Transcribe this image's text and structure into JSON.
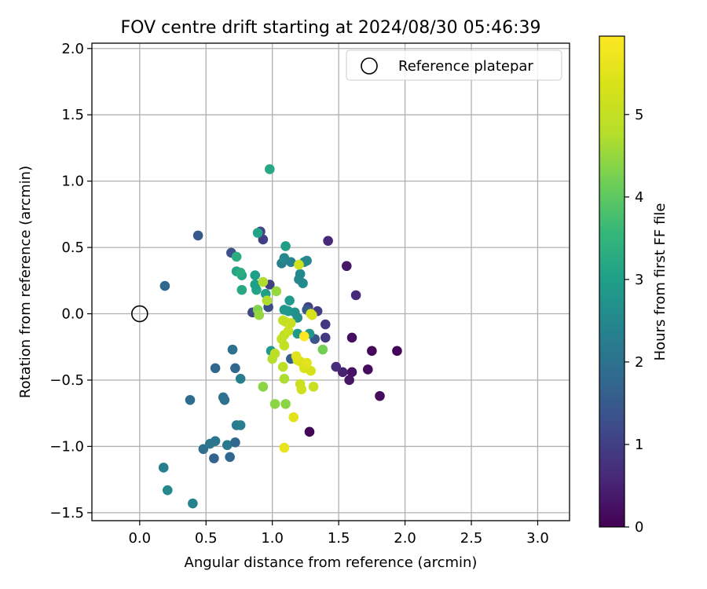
{
  "chart_data": {
    "type": "scatter",
    "title": "FOV centre drift starting at 2024/08/30 05:46:39",
    "xlabel": "Angular distance from reference (arcmin)",
    "ylabel": "Rotation from reference (arcmin)",
    "xlim": [
      -0.36,
      3.24
    ],
    "ylim": [
      -1.56,
      2.04
    ],
    "xticks": [
      "0.0",
      "0.5",
      "1.0",
      "1.5",
      "2.0",
      "2.5",
      "3.0"
    ],
    "xtick_values": [
      0,
      0.5,
      1,
      1.5,
      2,
      2.5,
      3
    ],
    "yticks": [
      "2.0",
      "1.5",
      "1.0",
      "0.5",
      "0.0",
      "−0.5",
      "−1.0",
      "−1.5"
    ],
    "ytick_values": [
      2,
      1.5,
      1,
      0.5,
      0,
      -0.5,
      -1,
      -1.5
    ],
    "grid": true,
    "legend": {
      "position": "top-right",
      "entries": [
        {
          "label": "Reference platepar",
          "marker": "open-circle"
        }
      ]
    },
    "reference_point": {
      "x": 0,
      "y": 0
    },
    "colorbar": {
      "label": "Hours from first FF file",
      "colormap": "viridis",
      "range": [
        0,
        5.95
      ],
      "ticks": [
        "0",
        "1",
        "2",
        "3",
        "4",
        "5"
      ],
      "tick_values": [
        0,
        1,
        2,
        3,
        4,
        5
      ]
    },
    "points": [
      {
        "x": 1.28,
        "y": -0.89,
        "h": 0.05
      },
      {
        "x": 1.94,
        "y": -0.28,
        "h": 0.05
      },
      {
        "x": 1.75,
        "y": -0.28,
        "h": 0.1
      },
      {
        "x": 1.72,
        "y": -0.42,
        "h": 0.15
      },
      {
        "x": 1.81,
        "y": -0.62,
        "h": 0.15
      },
      {
        "x": 1.6,
        "y": -0.18,
        "h": 0.2
      },
      {
        "x": 1.6,
        "y": -0.44,
        "h": 0.25
      },
      {
        "x": 1.58,
        "y": -0.5,
        "h": 0.3
      },
      {
        "x": 1.56,
        "y": 0.36,
        "h": 0.35
      },
      {
        "x": 1.53,
        "y": -0.44,
        "h": 0.5
      },
      {
        "x": 1.42,
        "y": 0.55,
        "h": 0.6
      },
      {
        "x": 1.63,
        "y": 0.14,
        "h": 0.65
      },
      {
        "x": 1.48,
        "y": -0.4,
        "h": 0.7
      },
      {
        "x": 1.4,
        "y": -0.18,
        "h": 0.9
      },
      {
        "x": 1.4,
        "y": -0.08,
        "h": 0.9
      },
      {
        "x": 1.34,
        "y": 0.02,
        "h": 0.95
      },
      {
        "x": 1.27,
        "y": 0.05,
        "h": 1.0
      },
      {
        "x": 0.93,
        "y": 0.56,
        "h": 1.0
      },
      {
        "x": 0.91,
        "y": 0.62,
        "h": 1.1
      },
      {
        "x": 0.98,
        "y": 0.22,
        "h": 1.0
      },
      {
        "x": 0.85,
        "y": 0.01,
        "h": 1.1
      },
      {
        "x": 0.97,
        "y": 0.05,
        "h": 1.2
      },
      {
        "x": 1.32,
        "y": -0.19,
        "h": 1.4
      },
      {
        "x": 1.26,
        "y": 0.03,
        "h": 1.5
      },
      {
        "x": 1.14,
        "y": -0.34,
        "h": 1.6
      },
      {
        "x": 0.44,
        "y": 0.59,
        "h": 1.5
      },
      {
        "x": 0.69,
        "y": 0.46,
        "h": 1.3
      },
      {
        "x": 0.19,
        "y": 0.21,
        "h": 1.8
      },
      {
        "x": 0.57,
        "y": -0.41,
        "h": 1.8
      },
      {
        "x": 0.72,
        "y": -0.41,
        "h": 1.8
      },
      {
        "x": 0.7,
        "y": -0.27,
        "h": 2.0
      },
      {
        "x": 0.38,
        "y": -0.65,
        "h": 1.9
      },
      {
        "x": 0.63,
        "y": -0.63,
        "h": 2.0
      },
      {
        "x": 0.64,
        "y": -0.65,
        "h": 2.0
      },
      {
        "x": 0.48,
        "y": -1.02,
        "h": 2.0
      },
      {
        "x": 0.53,
        "y": -0.98,
        "h": 2.1
      },
      {
        "x": 0.57,
        "y": -0.96,
        "h": 2.1
      },
      {
        "x": 0.66,
        "y": -0.99,
        "h": 2.2
      },
      {
        "x": 0.72,
        "y": -0.97,
        "h": 1.8
      },
      {
        "x": 0.56,
        "y": -1.09,
        "h": 1.7
      },
      {
        "x": 0.68,
        "y": -1.08,
        "h": 1.8
      },
      {
        "x": 0.73,
        "y": -0.84,
        "h": 2.2
      },
      {
        "x": 0.76,
        "y": -0.84,
        "h": 2.3
      },
      {
        "x": 0.76,
        "y": -0.49,
        "h": 2.3
      },
      {
        "x": 0.18,
        "y": -1.16,
        "h": 2.3
      },
      {
        "x": 0.21,
        "y": -1.33,
        "h": 2.5
      },
      {
        "x": 0.4,
        "y": -1.43,
        "h": 2.4
      },
      {
        "x": 1.07,
        "y": 0.38,
        "h": 2.3
      },
      {
        "x": 1.09,
        "y": 0.42,
        "h": 2.5
      },
      {
        "x": 1.14,
        "y": 0.39,
        "h": 2.4
      },
      {
        "x": 1.21,
        "y": 0.3,
        "h": 2.5
      },
      {
        "x": 1.23,
        "y": 0.23,
        "h": 2.6
      },
      {
        "x": 1.24,
        "y": 0.39,
        "h": 2.6
      },
      {
        "x": 1.26,
        "y": 0.4,
        "h": 2.5
      },
      {
        "x": 1.2,
        "y": 0.26,
        "h": 2.5
      },
      {
        "x": 1.17,
        "y": 0.01,
        "h": 2.7
      },
      {
        "x": 1.12,
        "y": 0.02,
        "h": 2.8
      },
      {
        "x": 1.09,
        "y": 0.03,
        "h": 2.8
      },
      {
        "x": 1.13,
        "y": 0.1,
        "h": 2.9
      },
      {
        "x": 1.19,
        "y": -0.03,
        "h": 2.7
      },
      {
        "x": 1.28,
        "y": -0.15,
        "h": 2.8
      },
      {
        "x": 1.19,
        "y": -0.15,
        "h": 2.9
      },
      {
        "x": 0.99,
        "y": -0.28,
        "h": 2.9
      },
      {
        "x": 1.1,
        "y": 0.51,
        "h": 3.0
      },
      {
        "x": 0.89,
        "y": 0.61,
        "h": 3.1
      },
      {
        "x": 0.87,
        "y": 0.29,
        "h": 3.0
      },
      {
        "x": 0.88,
        "y": 0.18,
        "h": 3.1
      },
      {
        "x": 0.87,
        "y": 0.22,
        "h": 3.0
      },
      {
        "x": 0.95,
        "y": 0.15,
        "h": 3.0
      },
      {
        "x": 0.73,
        "y": 0.32,
        "h": 3.1
      },
      {
        "x": 0.77,
        "y": 0.29,
        "h": 3.1
      },
      {
        "x": 0.77,
        "y": 0.18,
        "h": 3.2
      },
      {
        "x": 0.98,
        "y": 1.09,
        "h": 3.2
      },
      {
        "x": 0.76,
        "y": 0.31,
        "h": 3.3
      },
      {
        "x": 0.73,
        "y": 0.43,
        "h": 3.3
      },
      {
        "x": 1.38,
        "y": -0.27,
        "h": 4.2
      },
      {
        "x": 0.96,
        "y": 0.1,
        "h": 4.2
      },
      {
        "x": 0.89,
        "y": 0.03,
        "h": 4.3
      },
      {
        "x": 0.93,
        "y": -0.55,
        "h": 4.4
      },
      {
        "x": 1.02,
        "y": -0.68,
        "h": 4.4
      },
      {
        "x": 1.1,
        "y": -0.68,
        "h": 4.4
      },
      {
        "x": 1.03,
        "y": 0.17,
        "h": 4.5
      },
      {
        "x": 0.9,
        "y": -0.01,
        "h": 4.5
      },
      {
        "x": 0.93,
        "y": 0.24,
        "h": 4.7
      },
      {
        "x": 0.96,
        "y": 0.1,
        "h": 4.7
      },
      {
        "x": 1.09,
        "y": -0.49,
        "h": 4.7
      },
      {
        "x": 1.0,
        "y": -0.34,
        "h": 4.8
      },
      {
        "x": 1.02,
        "y": -0.3,
        "h": 4.9
      },
      {
        "x": 1.09,
        "y": -0.16,
        "h": 4.9
      },
      {
        "x": 1.08,
        "y": -0.4,
        "h": 4.9
      },
      {
        "x": 1.09,
        "y": -0.24,
        "h": 5.0
      },
      {
        "x": 1.07,
        "y": -0.19,
        "h": 5.0
      },
      {
        "x": 1.08,
        "y": -0.05,
        "h": 5.0
      },
      {
        "x": 1.1,
        "y": -0.06,
        "h": 5.0
      },
      {
        "x": 1.12,
        "y": -0.13,
        "h": 5.1
      },
      {
        "x": 1.14,
        "y": -0.07,
        "h": 5.1
      },
      {
        "x": 1.31,
        "y": -0.55,
        "h": 5.1
      },
      {
        "x": 1.21,
        "y": -0.53,
        "h": 5.1
      },
      {
        "x": 1.22,
        "y": -0.57,
        "h": 5.2
      },
      {
        "x": 1.2,
        "y": 0.37,
        "h": 5.2
      },
      {
        "x": 1.29,
        "y": 0.0,
        "h": 5.3
      },
      {
        "x": 1.3,
        "y": -0.01,
        "h": 5.3
      },
      {
        "x": 1.29,
        "y": -0.43,
        "h": 5.3
      },
      {
        "x": 1.19,
        "y": -0.35,
        "h": 5.3
      },
      {
        "x": 1.24,
        "y": -0.41,
        "h": 5.4
      },
      {
        "x": 1.21,
        "y": -0.36,
        "h": 5.4
      },
      {
        "x": 1.26,
        "y": -0.37,
        "h": 5.5
      },
      {
        "x": 1.18,
        "y": -0.32,
        "h": 5.5
      },
      {
        "x": 1.16,
        "y": -0.78,
        "h": 5.5
      },
      {
        "x": 1.09,
        "y": -1.01,
        "h": 5.6
      },
      {
        "x": 1.24,
        "y": -0.17,
        "h": 5.95
      }
    ]
  }
}
